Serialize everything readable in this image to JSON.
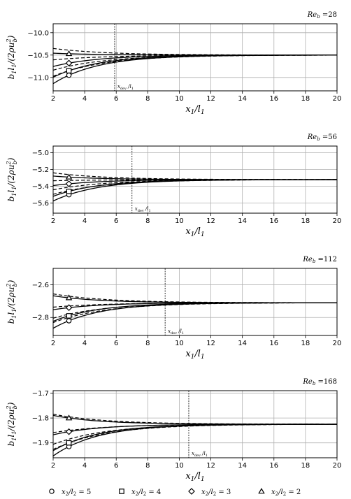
{
  "chart_data": [
    {
      "type": "line",
      "re_label": "Re_b",
      "re_value": "=28",
      "xlabel": "x1/l1",
      "ylabel": "b1 l1/(2 rho u_b^2)",
      "xlim": [
        2,
        20
      ],
      "ylim": [
        -11.3,
        -9.8
      ],
      "xticks": [
        2,
        4,
        6,
        8,
        10,
        12,
        14,
        16,
        18,
        20
      ],
      "yticks": [
        -10.0,
        -10.5,
        -11.0
      ],
      "ytick_labels": [
        "−10.0",
        "−10.5",
        "−11.0"
      ],
      "xdev": 5.9,
      "xdev_label": "x_dev / l_1",
      "asymptote": -10.5,
      "grid": true,
      "series": [
        {
          "ratio": 5,
          "marker": "circle",
          "y_solid": -10.95,
          "y_dashed": -10.85
        },
        {
          "ratio": 4,
          "marker": "square",
          "y_solid": -10.85,
          "y_dashed": -10.75
        },
        {
          "ratio": 3,
          "marker": "diamond",
          "y_solid": -10.68,
          "y_dashed": -10.58
        },
        {
          "ratio": 2,
          "marker": "triangle",
          "y_solid": -10.47,
          "y_dashed": -10.39
        }
      ]
    },
    {
      "type": "line",
      "re_label": "Re_b",
      "re_value": "=56",
      "xlabel": "x1/l1",
      "ylabel": "b1 l1/(2 rho u_b^2)",
      "xlim": [
        2,
        20
      ],
      "ylim": [
        -5.72,
        -4.92
      ],
      "xticks": [
        2,
        4,
        6,
        8,
        10,
        12,
        14,
        16,
        18,
        20
      ],
      "yticks": [
        -5.0,
        -5.2,
        -5.4,
        -5.6
      ],
      "ytick_labels": [
        "−5.0",
        "−5.2",
        "−5.4",
        "−5.6"
      ],
      "xdev": 7.0,
      "xdev_label": "x_dev / l_1",
      "asymptote": -5.32,
      "grid": true,
      "series": [
        {
          "ratio": 5,
          "marker": "circle",
          "y_solid": -5.5,
          "y_dashed": -5.45
        },
        {
          "ratio": 4,
          "marker": "square",
          "y_solid": -5.46,
          "y_dashed": -5.41
        },
        {
          "ratio": 3,
          "marker": "diamond",
          "y_solid": -5.37,
          "y_dashed": -5.33
        },
        {
          "ratio": 2,
          "marker": "triangle",
          "y_solid": -5.29,
          "y_dashed": -5.26
        }
      ]
    },
    {
      "type": "line",
      "re_label": "Re_b",
      "re_value": "=112",
      "xlabel": "x1/l1",
      "ylabel": "b1 l1/(2 rho u_b^2)",
      "xlim": [
        2,
        20
      ],
      "ylim": [
        -2.91,
        -2.5
      ],
      "xticks": [
        2,
        4,
        6,
        8,
        10,
        12,
        14,
        16,
        18,
        20
      ],
      "yticks": [
        -2.6,
        -2.8
      ],
      "ytick_labels": [
        "−2.6",
        "−2.8"
      ],
      "xdev": 9.1,
      "xdev_label": "x_dev / l_1",
      "asymptote": -2.71,
      "grid": true,
      "series": [
        {
          "ratio": 5,
          "marker": "circle",
          "y_solid": -2.82,
          "y_dashed": -2.8
        },
        {
          "ratio": 4,
          "marker": "square",
          "y_solid": -2.79,
          "y_dashed": -2.78
        },
        {
          "ratio": 3,
          "marker": "diamond",
          "y_solid": -2.74,
          "y_dashed": -2.73
        },
        {
          "ratio": 2,
          "marker": "triangle",
          "y_solid": -2.68,
          "y_dashed": -2.67
        }
      ]
    },
    {
      "type": "line",
      "re_label": "Re_b",
      "re_value": "=168",
      "xlabel": "x1/l1",
      "ylabel": "b1 l1/(2 rho u_b^2)",
      "xlim": [
        2,
        20
      ],
      "ylim": [
        -1.96,
        -1.69
      ],
      "xticks": [
        2,
        4,
        6,
        8,
        10,
        12,
        14,
        16,
        18,
        20
      ],
      "yticks": [
        -1.7,
        -1.8,
        -1.9
      ],
      "ytick_labels": [
        "−1.7",
        "−1.8",
        "−1.9"
      ],
      "xdev": 10.6,
      "xdev_label": "x_dev / l_1",
      "asymptote": -1.825,
      "grid": true,
      "series": [
        {
          "ratio": 5,
          "marker": "circle",
          "y_solid": -1.915,
          "y_dashed": -1.9
        },
        {
          "ratio": 4,
          "marker": "square",
          "y_solid": -1.9,
          "y_dashed": -1.885
        },
        {
          "ratio": 3,
          "marker": "diamond",
          "y_solid": -1.855,
          "y_dashed": -1.85
        },
        {
          "ratio": 2,
          "marker": "triangle",
          "y_solid": -1.8,
          "y_dashed": -1.795
        }
      ]
    }
  ],
  "legend": [
    {
      "marker": "circle",
      "label": "x2/l2 = 5"
    },
    {
      "marker": "square",
      "label": "x2/l2 = 4"
    },
    {
      "marker": "diamond",
      "label": "x2/l2 = 3"
    },
    {
      "marker": "triangle",
      "label": "x2/l2 = 2"
    }
  ]
}
